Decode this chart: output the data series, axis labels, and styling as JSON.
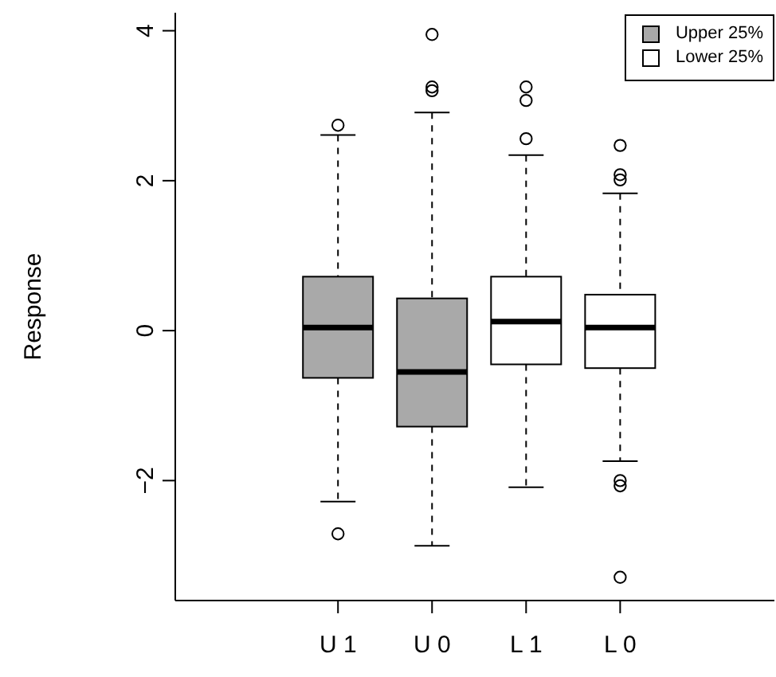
{
  "chart_data": {
    "type": "box",
    "ylabel": "Response",
    "categories": [
      "U 1",
      "U 0",
      "L 1",
      "L 0"
    ],
    "ylim": [
      -3.6,
      4.24
    ],
    "yticks": [
      -2,
      0,
      2,
      4
    ],
    "legend": "top right",
    "series": [
      {
        "name": "Upper 25%",
        "color": "#a9a9a9",
        "boxes": [
          {
            "low": -2.28,
            "q1": -0.63,
            "median": 0.04,
            "q3": 0.72,
            "high": 2.61,
            "outliers": [
              2.74,
              -2.71
            ]
          },
          {
            "low": -2.87,
            "q1": -1.28,
            "median": -0.55,
            "q3": 0.43,
            "high": 2.91,
            "outliers": [
              3.95,
              3.25,
              3.2
            ]
          },
          null,
          null
        ]
      },
      {
        "name": "Lower 25%",
        "color": "#ffffff",
        "boxes": [
          null,
          null,
          {
            "low": -2.09,
            "q1": -0.45,
            "median": 0.12,
            "q3": 0.72,
            "high": 2.34,
            "outliers": [
              3.25,
              3.07,
              2.56
            ]
          },
          {
            "low": -1.74,
            "q1": -0.5,
            "median": 0.04,
            "q3": 0.48,
            "high": 1.83,
            "outliers": [
              2.47,
              2.08,
              2.01,
              -2.0,
              -2.07,
              -3.29
            ]
          }
        ]
      }
    ]
  }
}
